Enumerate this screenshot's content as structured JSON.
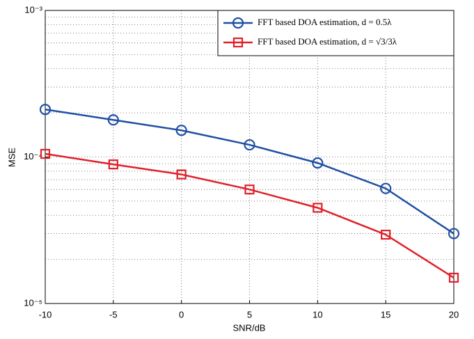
{
  "chart_data": {
    "type": "line",
    "x_label": "SNR/dB",
    "y_label": "MSE",
    "x": [
      -10,
      -5,
      0,
      5,
      10,
      15,
      20
    ],
    "series": [
      {
        "name": "FFT based DOA estimation, d = 0.5λ",
        "color": "#1f4fa3",
        "marker": "circle",
        "values": [
          0.000211,
          0.000179,
          0.000152,
          0.000121,
          9.1e-05,
          6.1e-05,
          3e-05
        ]
      },
      {
        "name": "FFT based DOA estimation, d = √3/3λ",
        "color": "#e0202a",
        "marker": "square",
        "values": [
          0.000105,
          8.9e-05,
          7.6e-05,
          6e-05,
          4.5e-05,
          2.95e-05,
          1.5e-05
        ]
      }
    ],
    "xlim": [
      -10,
      20
    ],
    "xticks": [
      -10,
      -5,
      0,
      5,
      10,
      15,
      20
    ],
    "ylim": [
      1e-05,
      0.001
    ],
    "yticks": [
      {
        "value": 1e-05,
        "label": "10⁻⁵"
      },
      {
        "value": 0.0001,
        "label": "10⁻⁴"
      },
      {
        "value": 0.001,
        "label": "10⁻³"
      }
    ],
    "log_y": true,
    "grid": true,
    "minor_grid": true,
    "legend": "upper right"
  }
}
